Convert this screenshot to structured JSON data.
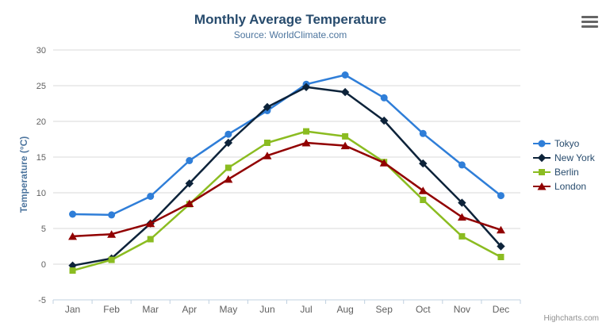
{
  "chart": {
    "credits": "Highcharts.com",
    "export_menu_icon": "hamburger-icon"
  },
  "chart_data": {
    "type": "line",
    "title": "Monthly Average Temperature",
    "subtitle": "Source: WorldClimate.com",
    "categories": [
      "Jan",
      "Feb",
      "Mar",
      "Apr",
      "May",
      "Jun",
      "Jul",
      "Aug",
      "Sep",
      "Oct",
      "Nov",
      "Dec"
    ],
    "series": [
      {
        "name": "Tokyo",
        "color": "#2f7ed8",
        "marker": "circle",
        "values": [
          7.0,
          6.9,
          9.5,
          14.5,
          18.2,
          21.5,
          25.2,
          26.5,
          23.3,
          18.3,
          13.9,
          9.6
        ]
      },
      {
        "name": "New York",
        "color": "#0d233a",
        "marker": "diamond",
        "values": [
          -0.2,
          0.8,
          5.7,
          11.3,
          17.0,
          22.0,
          24.8,
          24.1,
          20.1,
          14.1,
          8.6,
          2.5
        ]
      },
      {
        "name": "Berlin",
        "color": "#8bbc21",
        "marker": "square",
        "values": [
          -0.9,
          0.6,
          3.5,
          8.4,
          13.5,
          17.0,
          18.6,
          17.9,
          14.3,
          9.0,
          3.9,
          1.0
        ]
      },
      {
        "name": "London",
        "color": "#910000",
        "marker": "triangle",
        "values": [
          3.9,
          4.2,
          5.7,
          8.5,
          11.9,
          15.2,
          17.0,
          16.6,
          14.2,
          10.3,
          6.6,
          4.8
        ]
      }
    ],
    "xlabel": "",
    "ylabel": "Temperature (°C)",
    "ylim": [
      -5,
      30
    ],
    "ytick_interval": 5,
    "grid": "horizontal",
    "legend_position": "right",
    "colors": {
      "title": "#274b6d",
      "subtitle": "#4d759e",
      "axis_labels": "#606060",
      "axis_line": "#c0d0e0",
      "gridline": "#d8d8d8",
      "y_axis_title": "#4d759e",
      "legend_text": "#274b6d",
      "credits": "#909090",
      "background": "#ffffff"
    }
  }
}
